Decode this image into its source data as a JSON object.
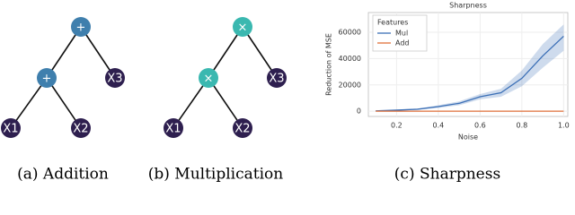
{
  "panels": [
    {
      "caption": "(a) Addition",
      "nodes": [
        {
          "label": "+"
        },
        {
          "label": "+"
        },
        {
          "label": "X3"
        },
        {
          "label": "X1"
        },
        {
          "label": "X2"
        }
      ]
    },
    {
      "caption": "(b) Multiplication",
      "nodes": [
        {
          "label": "×"
        },
        {
          "label": "×"
        },
        {
          "label": "X3"
        },
        {
          "label": "X1"
        },
        {
          "label": "X2"
        }
      ]
    }
  ],
  "chart_data": {
    "type": "line",
    "title": "Sharpness",
    "caption": "(c) Sharpness",
    "x_label": "Noise",
    "y_label": "Reduction of MSE",
    "legend_title": "Features",
    "legend": "upper left",
    "grid": true,
    "x": [
      0.1,
      0.2,
      0.3,
      0.4,
      0.5,
      0.6,
      0.7,
      0.8,
      0.9,
      1.0
    ],
    "series": [
      {
        "name": "Mul",
        "color": "#3b6fb6",
        "values": [
          200,
          800,
          1500,
          3500,
          6000,
          11000,
          14000,
          25000,
          42000,
          57000
        ],
        "lower": [
          100,
          500,
          1000,
          2500,
          4500,
          9000,
          11000,
          19000,
          33000,
          46000
        ],
        "upper": [
          300,
          1100,
          2000,
          4500,
          7500,
          13000,
          17000,
          31000,
          51000,
          66000
        ]
      },
      {
        "name": "Add",
        "color": "#e0703a",
        "values": [
          0,
          0,
          0,
          0,
          0,
          0,
          0,
          0,
          0,
          0
        ]
      }
    ],
    "xlim": [
      0.065,
      1.02
    ],
    "xticks": [
      0.2,
      0.4,
      0.6,
      0.8,
      {
        "value": 1,
        "label": "1.0"
      }
    ],
    "ylim": [
      -4000,
      75000
    ],
    "yticks": [
      0,
      20000,
      40000,
      60000
    ]
  }
}
